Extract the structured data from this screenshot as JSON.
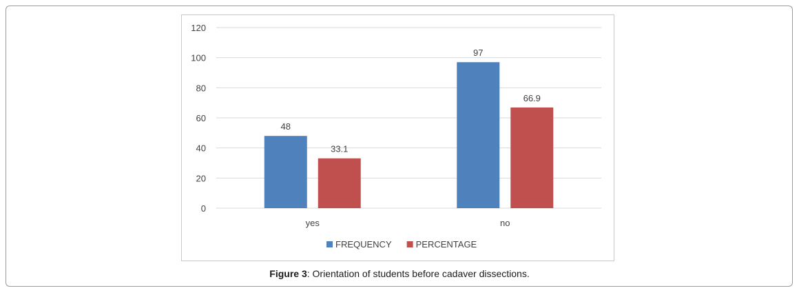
{
  "caption": {
    "label": "Figure 3",
    "text": ": Orientation of students before cadaver dissections."
  },
  "chart_data": {
    "type": "bar",
    "categories": [
      "yes",
      "no"
    ],
    "series": [
      {
        "name": "FREQUENCY",
        "values": [
          48,
          97
        ],
        "labels": [
          "48",
          "97"
        ],
        "color": "#4f81bd"
      },
      {
        "name": "PERCENTAGE",
        "values": [
          33.1,
          66.9
        ],
        "labels": [
          "33.1",
          "66.9"
        ],
        "color": "#c0504d"
      }
    ],
    "ylim": [
      0,
      120
    ],
    "yticks": [
      0,
      20,
      40,
      60,
      80,
      100,
      120
    ],
    "grid": true,
    "legend": "bottom-center",
    "gridline_color": "#d9d9d9",
    "text_color": "#404040"
  }
}
